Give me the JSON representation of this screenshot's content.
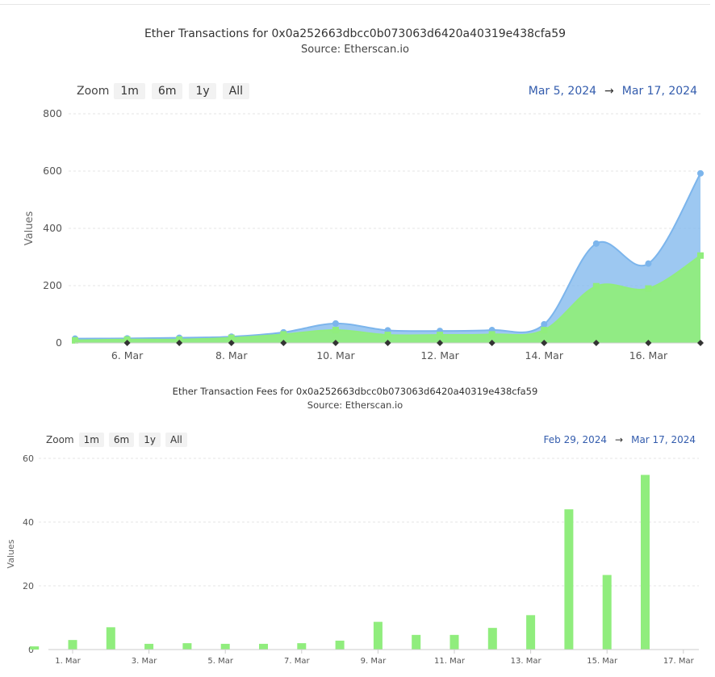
{
  "chart_data": [
    {
      "type": "area",
      "title": "Ether Transactions for 0x0a252663dbcc0b073063d6420a40319e438cfa59",
      "subtitle": "Source: Etherscan.io",
      "ylabel": "Values",
      "ylim": [
        0,
        800
      ],
      "yticks": [
        "0",
        "200",
        "400",
        "600",
        "800"
      ],
      "x": [
        "2024-03-05",
        "2024-03-06",
        "2024-03-07",
        "2024-03-08",
        "2024-03-09",
        "2024-03-10",
        "2024-03-11",
        "2024-03-12",
        "2024-03-13",
        "2024-03-14",
        "2024-03-15",
        "2024-03-16",
        "2024-03-17"
      ],
      "xticks": [
        "6. Mar",
        "8. Mar",
        "10. Mar",
        "12. Mar",
        "14. Mar",
        "16. Mar"
      ],
      "series": [
        {
          "color": "#7cb5ec",
          "values": [
            15,
            16,
            18,
            22,
            37,
            68,
            44,
            42,
            45,
            65,
            347,
            277,
            592
          ]
        },
        {
          "color": "#90ed7d",
          "values": [
            9,
            12,
            12,
            18,
            30,
            45,
            28,
            28,
            30,
            45,
            198,
            190,
            305
          ]
        }
      ],
      "grid": true,
      "zoom": {
        "label": "Zoom",
        "buttons": [
          "1m",
          "6m",
          "1y",
          "All"
        ]
      },
      "range": {
        "from": "Mar 5, 2024",
        "arrow": "→",
        "to": "Mar 17, 2024"
      }
    },
    {
      "type": "bar",
      "title": "Ether Transaction Fees for 0x0a252663dbcc0b073063d6420a40319e438cfa59",
      "subtitle": "Source: Etherscan.io",
      "ylabel": "Values",
      "ylim": [
        0,
        60
      ],
      "yticks": [
        "0",
        "20",
        "40",
        "60"
      ],
      "x": [
        "2024-02-29",
        "2024-03-01",
        "2024-03-02",
        "2024-03-03",
        "2024-03-04",
        "2024-03-05",
        "2024-03-06",
        "2024-03-07",
        "2024-03-08",
        "2024-03-09",
        "2024-03-10",
        "2024-03-11",
        "2024-03-12",
        "2024-03-13",
        "2024-03-14",
        "2024-03-15",
        "2024-03-16",
        "2024-03-17"
      ],
      "xticks": [
        "1. Mar",
        "3. Mar",
        "5. Mar",
        "7. Mar",
        "9. Mar",
        "11. Mar",
        "13. Mar",
        "15. Mar",
        "17. Mar"
      ],
      "series": [
        {
          "color": "#90ed7d",
          "values": [
            1.0,
            3.0,
            7.0,
            1.8,
            2.0,
            1.8,
            1.8,
            2.0,
            2.8,
            8.7,
            4.6,
            4.6,
            6.8,
            10.8,
            44,
            23.4,
            54.8,
            0
          ]
        }
      ],
      "grid": true,
      "zoom": {
        "label": "Zoom",
        "buttons": [
          "1m",
          "6m",
          "1y",
          "All"
        ]
      },
      "range": {
        "from": "Feb 29, 2024",
        "arrow": "→",
        "to": "Mar 17, 2024"
      }
    }
  ]
}
